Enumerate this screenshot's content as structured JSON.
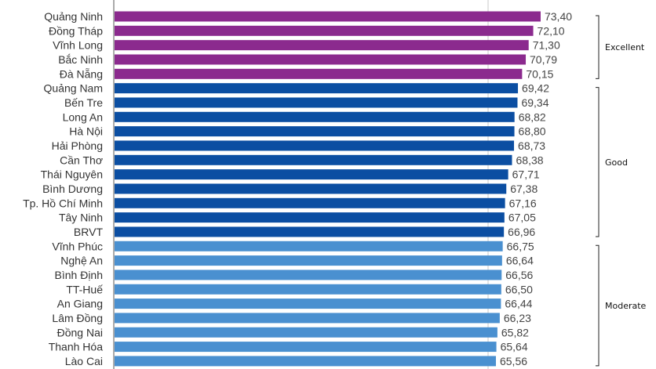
{
  "chart_data": {
    "type": "bar",
    "orientation": "horizontal",
    "categories": [
      "Quảng Ninh",
      "Đồng Tháp",
      "Vĩnh Long",
      "Bắc Ninh",
      "Đà Nẵng",
      "Quảng Nam",
      "Bến Tre",
      "Long An",
      "Hà Nội",
      "Hải Phòng",
      "Cần Thơ",
      "Thái Nguyên",
      "Bình Dương",
      "Tp. Hồ Chí Minh",
      "Tây Ninh",
      "BRVT",
      "Vĩnh Phúc",
      "Nghệ An",
      "Bình Định",
      "TT-Huế",
      "An Giang",
      "Lâm Đồng",
      "Đồng Nai",
      "Thanh Hóa",
      "Lào Cai"
    ],
    "values": [
      73.4,
      72.1,
      71.3,
      70.79,
      70.15,
      69.42,
      69.34,
      68.82,
      68.8,
      68.73,
      68.38,
      67.71,
      67.38,
      67.16,
      67.05,
      66.96,
      66.75,
      66.64,
      66.56,
      66.5,
      66.44,
      66.23,
      65.82,
      65.64,
      65.56
    ],
    "value_labels": [
      "73,40",
      "72,10",
      "71,30",
      "70,79",
      "70,15",
      "69,42",
      "69,34",
      "68,82",
      "68,80",
      "68,73",
      "68,38",
      "67,71",
      "67,38",
      "67,16",
      "67,05",
      "66,96",
      "66,75",
      "66,64",
      "66,56",
      "66,50",
      "66,44",
      "66,23",
      "65,82",
      "65,64",
      "65,56"
    ],
    "groups": [
      {
        "name": "Excellent",
        "start": 0,
        "end": 4,
        "color": "#8B2A8E"
      },
      {
        "name": "Good",
        "start": 5,
        "end": 15,
        "color": "#0B4EA2"
      },
      {
        "name": "Moderate",
        "start": 16,
        "end": 24,
        "color": "#4A90D0"
      }
    ],
    "title": "",
    "xlabel": "",
    "ylabel": "",
    "grid": true
  }
}
